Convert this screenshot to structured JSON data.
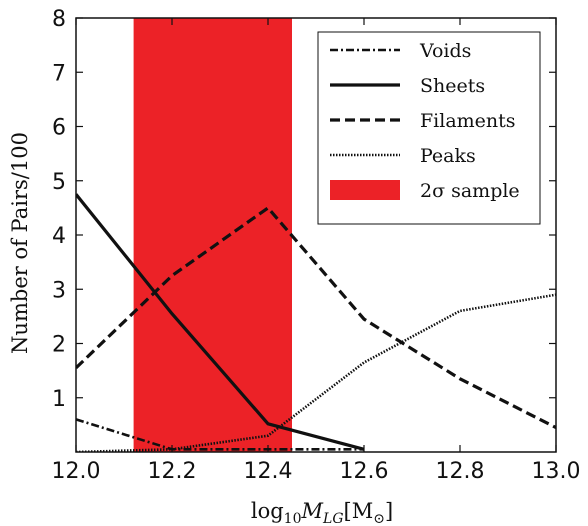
{
  "chart_data": {
    "type": "line",
    "xlabel_parts": {
      "base": "log",
      "sub1": "10",
      "mid": "M",
      "sub2": "LG",
      "bracket_open": "[M",
      "sub3": "⊙",
      "bracket_close": "]"
    },
    "ylabel": "Number of Pairs/100",
    "xlim": [
      12.0,
      13.0
    ],
    "ylim": [
      0,
      8
    ],
    "x_ticks": [
      12.0,
      12.2,
      12.4,
      12.6,
      12.8,
      13.0
    ],
    "x_tick_labels": [
      "12.0",
      "12.2",
      "12.4",
      "12.6",
      "12.8",
      "13.0"
    ],
    "y_ticks": [
      1,
      2,
      3,
      4,
      5,
      6,
      7,
      8
    ],
    "y_tick_labels": [
      "1",
      "2",
      "3",
      "4",
      "5",
      "6",
      "7",
      "8"
    ],
    "band": {
      "name": "2σ sample",
      "x0": 12.12,
      "x1": 12.45,
      "color": "#ec2227"
    },
    "series": [
      {
        "name": "Voids",
        "style": "dashdot",
        "color": "#111111",
        "x": [
          12.0,
          12.2,
          12.4,
          12.6
        ],
        "y": [
          0.6,
          0.05,
          0.05,
          0.05
        ]
      },
      {
        "name": "Sheets",
        "style": "solid",
        "color": "#111111",
        "x": [
          12.0,
          12.2,
          12.4,
          12.6
        ],
        "y": [
          4.75,
          2.55,
          0.52,
          0.05
        ]
      },
      {
        "name": "Filaments",
        "style": "dashed",
        "color": "#111111",
        "x": [
          12.0,
          12.2,
          12.4,
          12.6,
          12.8,
          13.0
        ],
        "y": [
          1.55,
          3.25,
          4.5,
          2.45,
          1.35,
          0.45
        ]
      },
      {
        "name": "Peaks",
        "style": "dotted",
        "color": "#111111",
        "x": [
          12.0,
          12.2,
          12.4,
          12.6,
          12.8,
          13.0
        ],
        "y": [
          0.0,
          0.05,
          0.3,
          1.65,
          2.6,
          2.9
        ]
      }
    ],
    "legend": {
      "placement": "top-right",
      "entries": [
        "Voids",
        "Sheets",
        "Filaments",
        "Peaks",
        "2σ sample"
      ]
    },
    "grid": false
  }
}
